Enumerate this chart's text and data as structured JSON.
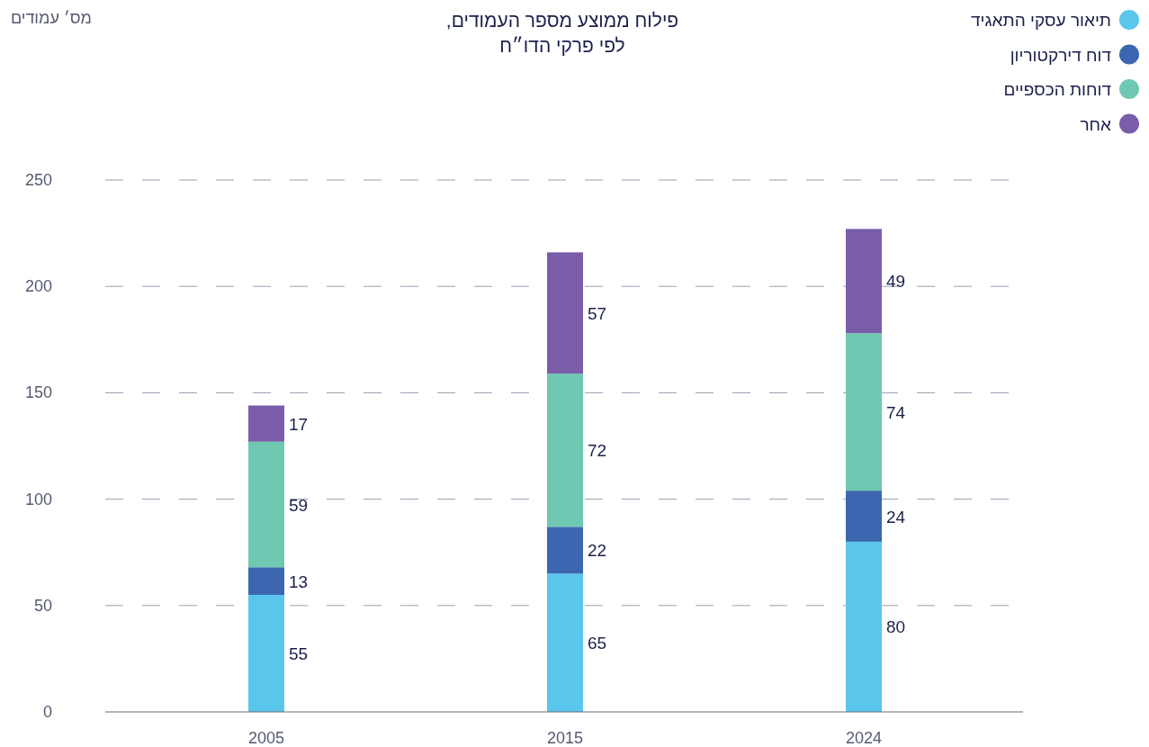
{
  "chart_data": {
    "type": "bar",
    "stacked": true,
    "title": "פילוח ממוצע מספר העמודים,",
    "subtitle": "לפי פרקי הדו״ח",
    "annotations": [
      "מס׳ עמודים"
    ],
    "categories": [
      "2005",
      "2015",
      "2024"
    ],
    "series": [
      {
        "name": "תיאור עסקי התאגיד",
        "color": "#5bc6eb",
        "values": [
          55,
          65,
          80
        ]
      },
      {
        "name": "דוח דירקטוריון",
        "color": "#3c67b0",
        "values": [
          13,
          22,
          24
        ]
      },
      {
        "name": "דוחות הכספיים",
        "color": "#6fc8b2",
        "values": [
          59,
          72,
          74
        ]
      },
      {
        "name": "אחר",
        "color": "#7a5da8",
        "values": [
          17,
          57,
          49
        ]
      }
    ],
    "ylim": [
      0,
      250
    ],
    "yticks": [
      0,
      50,
      100,
      150,
      200,
      250
    ],
    "grid": "y",
    "legend": "top right",
    "data_labels": true
  }
}
